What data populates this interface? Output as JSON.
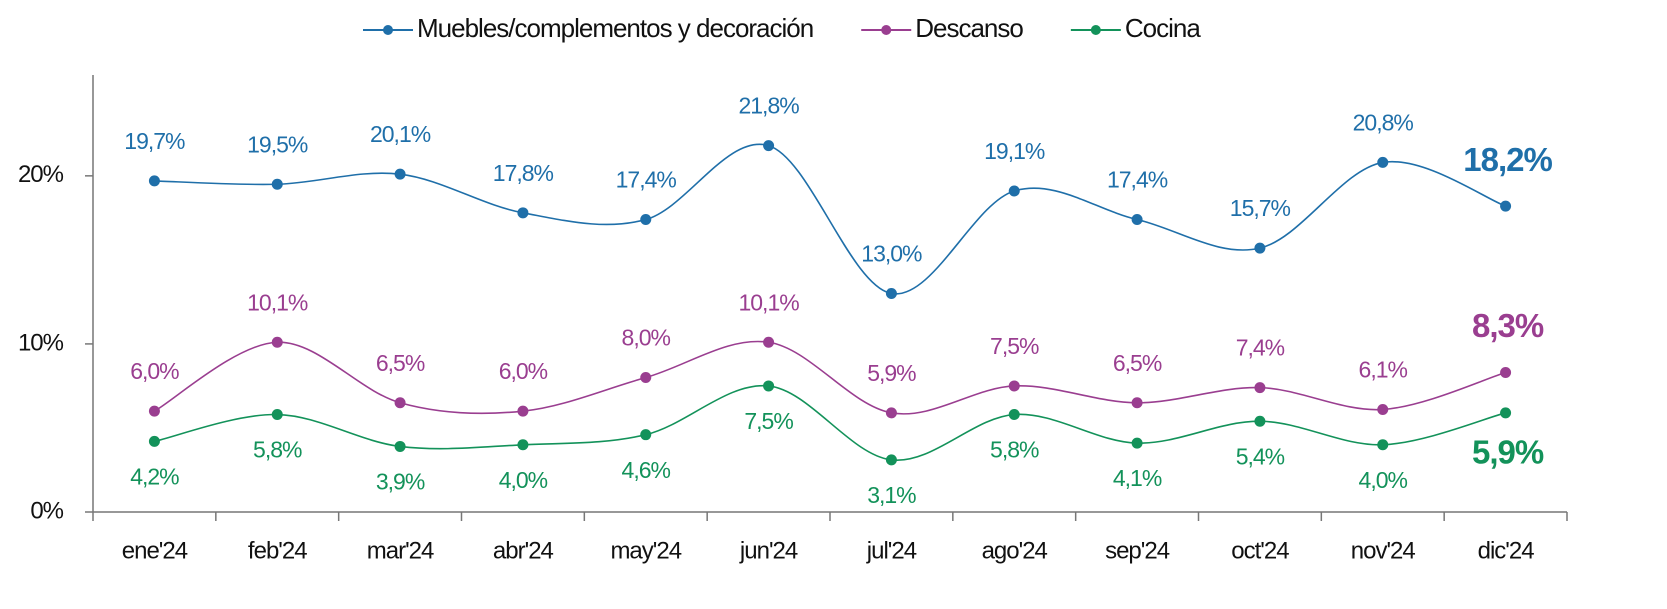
{
  "chart_data": {
    "type": "line",
    "categories": [
      "ene'24",
      "feb'24",
      "mar'24",
      "abr'24",
      "may'24",
      "jun'24",
      "jul'24",
      "ago'24",
      "sep'24",
      "oct'24",
      "nov'24",
      "dic'24"
    ],
    "series": [
      {
        "name": "Muebles/complementos y decoración",
        "color": "#1f6fa9",
        "label_position": "above",
        "values": [
          19.7,
          19.5,
          20.1,
          17.8,
          17.4,
          21.8,
          13.0,
          19.1,
          17.4,
          15.7,
          20.8,
          18.2
        ],
        "value_labels": [
          "19,7%",
          "19,5%",
          "20,1%",
          "17,8%",
          "17,4%",
          "21,8%",
          "13,0%",
          "19,1%",
          "17,4%",
          "15,7%",
          "20,8%",
          "18,2%"
        ]
      },
      {
        "name": "Descanso",
        "color": "#9a3e90",
        "label_position": "above",
        "values": [
          6.0,
          10.1,
          6.5,
          6.0,
          8.0,
          10.1,
          5.9,
          7.5,
          6.5,
          7.4,
          6.1,
          8.3
        ],
        "value_labels": [
          "6,0%",
          "10,1%",
          "6,5%",
          "6,0%",
          "8,0%",
          "10,1%",
          "5,9%",
          "7,5%",
          "6,5%",
          "7,4%",
          "6,1%",
          "8,3%"
        ]
      },
      {
        "name": "Cocina",
        "color": "#13925a",
        "label_position": "below",
        "values": [
          4.2,
          5.8,
          3.9,
          4.0,
          4.6,
          7.5,
          3.1,
          5.8,
          4.1,
          5.4,
          4.0,
          5.9
        ],
        "value_labels": [
          "4,2%",
          "5,8%",
          "3,9%",
          "4,0%",
          "4,6%",
          "7,5%",
          "3,1%",
          "5,8%",
          "4,1%",
          "5,4%",
          "4,0%",
          "5,9%"
        ]
      }
    ],
    "ylim": [
      0,
      26
    ],
    "yticks": [
      {
        "value": 0,
        "label": "0%"
      },
      {
        "value": 10,
        "label": "10%"
      },
      {
        "value": 20,
        "label": "20%"
      }
    ],
    "legend": "top",
    "smooth": true
  }
}
